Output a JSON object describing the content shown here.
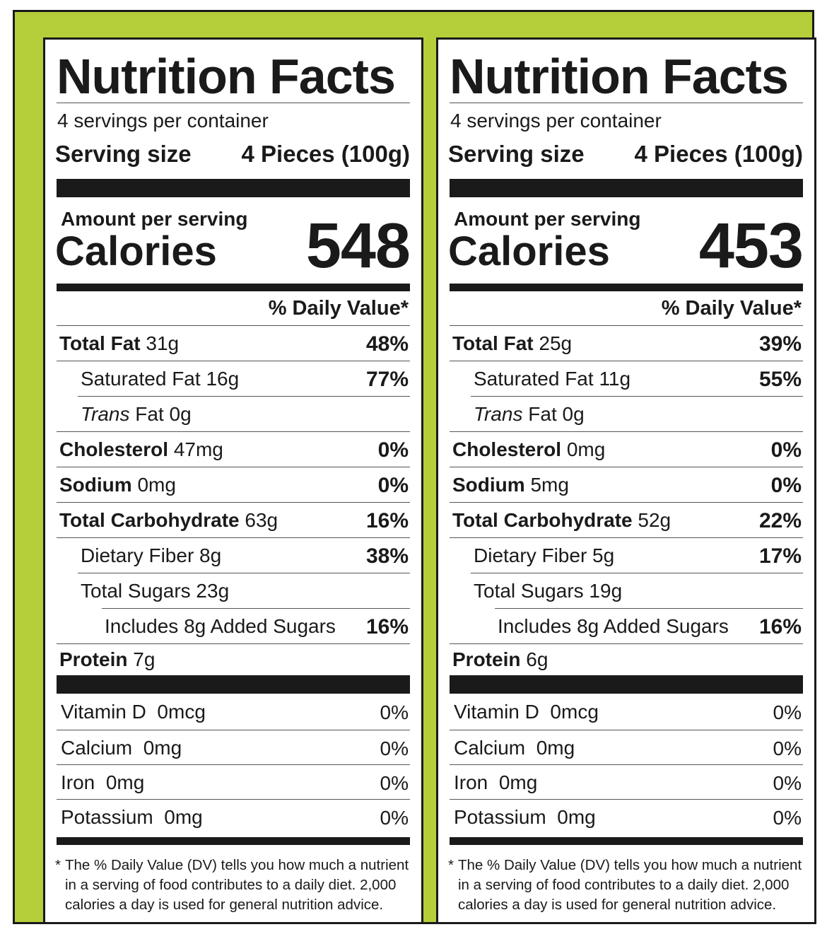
{
  "colors": {
    "frame": "#b5cf3a",
    "ink": "#1a1a1a",
    "panel": "#ffffff"
  },
  "labels": [
    {
      "title": "Nutrition Facts",
      "servings_per_container": "4 servings per container",
      "serving_size_label": "Serving size",
      "serving_size_value": "4 Pieces (100g)",
      "amount_per_serving": "Amount per serving",
      "calories_label": "Calories",
      "calories": "548",
      "dv_header": "% Daily Value*",
      "nutrients": {
        "total_fat": {
          "name": "Total Fat",
          "amount": "31g",
          "dv": "48%"
        },
        "saturated_fat": {
          "name": "Saturated Fat",
          "amount": "16g",
          "dv": "77%"
        },
        "trans_fat": {
          "name": "Trans",
          "suffix": "Fat",
          "amount": "0g"
        },
        "cholesterol": {
          "name": "Cholesterol",
          "amount": "47mg",
          "dv": "0%"
        },
        "sodium": {
          "name": "Sodium",
          "amount": "0mg",
          "dv": "0%"
        },
        "total_carbohydrate": {
          "name": "Total Carbohydrate",
          "amount": "63g",
          "dv": "16%"
        },
        "dietary_fiber": {
          "name": "Dietary Fiber",
          "amount": "8g",
          "dv": "38%"
        },
        "total_sugars": {
          "name": "Total Sugars",
          "amount": "23g"
        },
        "added_sugars": {
          "text": "Includes 8g Added Sugars",
          "dv": "16%"
        },
        "protein": {
          "name": "Protein",
          "amount": "7g"
        }
      },
      "vitamins": [
        {
          "name": "Vitamin D",
          "amount": "0mcg",
          "dv": "0%"
        },
        {
          "name": "Calcium",
          "amount": "0mg",
          "dv": "0%"
        },
        {
          "name": "Iron",
          "amount": "0mg",
          "dv": "0%"
        },
        {
          "name": "Potassium",
          "amount": "0mg",
          "dv": "0%"
        }
      ],
      "footnote_star": "*",
      "footnote": "The % Daily Value (DV) tells you how much a nutrient in a serving of food contributes to a daily diet. 2,000 calories a day is used for general nutrition advice."
    },
    {
      "title": "Nutrition Facts",
      "servings_per_container": "4 servings per container",
      "serving_size_label": "Serving size",
      "serving_size_value": "4 Pieces (100g)",
      "amount_per_serving": "Amount per serving",
      "calories_label": "Calories",
      "calories": "453",
      "dv_header": "% Daily Value*",
      "nutrients": {
        "total_fat": {
          "name": "Total Fat",
          "amount": "25g",
          "dv": "39%"
        },
        "saturated_fat": {
          "name": "Saturated Fat",
          "amount": "11g",
          "dv": "55%"
        },
        "trans_fat": {
          "name": "Trans",
          "suffix": "Fat",
          "amount": "0g"
        },
        "cholesterol": {
          "name": "Cholesterol",
          "amount": "0mg",
          "dv": "0%"
        },
        "sodium": {
          "name": "Sodium",
          "amount": "5mg",
          "dv": "0%"
        },
        "total_carbohydrate": {
          "name": "Total Carbohydrate",
          "amount": "52g",
          "dv": "22%"
        },
        "dietary_fiber": {
          "name": "Dietary Fiber",
          "amount": "5g",
          "dv": "17%"
        },
        "total_sugars": {
          "name": "Total Sugars",
          "amount": "19g"
        },
        "added_sugars": {
          "text": "Includes 8g Added Sugars",
          "dv": "16%"
        },
        "protein": {
          "name": "Protein",
          "amount": "6g"
        }
      },
      "vitamins": [
        {
          "name": "Vitamin D",
          "amount": "0mcg",
          "dv": "0%"
        },
        {
          "name": "Calcium",
          "amount": "0mg",
          "dv": "0%"
        },
        {
          "name": "Iron",
          "amount": "0mg",
          "dv": "0%"
        },
        {
          "name": "Potassium",
          "amount": "0mg",
          "dv": "0%"
        }
      ],
      "footnote_star": "*",
      "footnote": "The % Daily Value (DV) tells you how much a nutrient in a serving of food contributes to a daily diet. 2,000 calories a day is used for general nutrition advice."
    }
  ]
}
